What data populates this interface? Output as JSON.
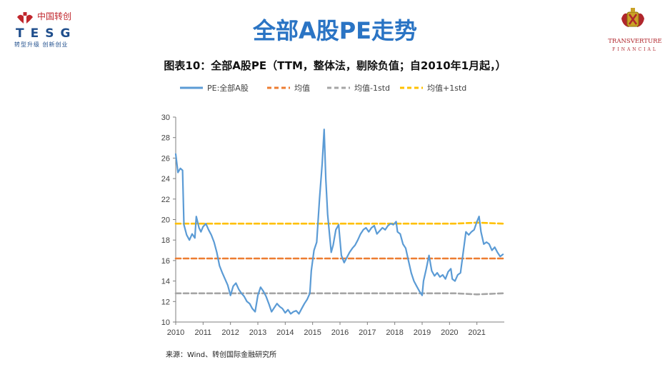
{
  "header": {
    "left_logo": {
      "cn": "中国转创",
      "en": "TESG",
      "slogan": "转型升级 创新创业"
    },
    "right_logo": {
      "name": "TRANSVERTURE",
      "sub": "FINANCIAL"
    },
    "page_title": "全部A股PE走势",
    "figure_title": "图表10：全部A股PE（TTM，整体法，剔除负值；自2010年1月起，）"
  },
  "source": "来源：Wind、转创国际金融研究所",
  "colors": {
    "pe": "#5b9bd5",
    "mean": "#ed7d31",
    "minus": "#a5a5a5",
    "plus": "#ffc000"
  },
  "chart_data": {
    "type": "line",
    "title": "图表10：全部A股PE（TTM，整体法，剔除负值；自2010年1月起，）",
    "xlabel": "",
    "ylabel": "",
    "xlim": [
      2010,
      2022
    ],
    "ylim": [
      10,
      30
    ],
    "x_ticks": [
      "2010",
      "2011",
      "2012",
      "2013",
      "2014",
      "2015",
      "2016",
      "2017",
      "2018",
      "2019",
      "2020",
      "2021"
    ],
    "y_ticks": [
      "10",
      "12",
      "14",
      "16",
      "18",
      "20",
      "22",
      "24",
      "26",
      "28",
      "30"
    ],
    "legend_position": "top",
    "grid": false,
    "series": [
      {
        "name": "PE:全部A股",
        "color": "#5b9bd5",
        "dash": "solid",
        "points": [
          [
            2010.0,
            26.4
          ],
          [
            2010.08,
            24.6
          ],
          [
            2010.17,
            25.0
          ],
          [
            2010.25,
            24.8
          ],
          [
            2010.3,
            19.5
          ],
          [
            2010.4,
            18.5
          ],
          [
            2010.5,
            18.0
          ],
          [
            2010.6,
            18.6
          ],
          [
            2010.7,
            18.2
          ],
          [
            2010.75,
            20.3
          ],
          [
            2010.85,
            19.2
          ],
          [
            2010.92,
            18.8
          ],
          [
            2011.0,
            19.3
          ],
          [
            2011.1,
            19.6
          ],
          [
            2011.2,
            19.0
          ],
          [
            2011.3,
            18.5
          ],
          [
            2011.4,
            17.8
          ],
          [
            2011.5,
            16.8
          ],
          [
            2011.6,
            15.5
          ],
          [
            2011.7,
            14.8
          ],
          [
            2011.8,
            14.2
          ],
          [
            2011.9,
            13.6
          ],
          [
            2012.0,
            12.6
          ],
          [
            2012.1,
            13.5
          ],
          [
            2012.2,
            13.8
          ],
          [
            2012.3,
            13.2
          ],
          [
            2012.4,
            12.8
          ],
          [
            2012.5,
            12.5
          ],
          [
            2012.6,
            12.0
          ],
          [
            2012.7,
            11.8
          ],
          [
            2012.8,
            11.3
          ],
          [
            2012.9,
            11.0
          ],
          [
            2013.0,
            12.6
          ],
          [
            2013.1,
            13.4
          ],
          [
            2013.2,
            13.0
          ],
          [
            2013.3,
            12.5
          ],
          [
            2013.4,
            11.8
          ],
          [
            2013.5,
            11.0
          ],
          [
            2013.6,
            11.4
          ],
          [
            2013.7,
            11.8
          ],
          [
            2013.8,
            11.5
          ],
          [
            2013.9,
            11.3
          ],
          [
            2014.0,
            10.9
          ],
          [
            2014.1,
            11.2
          ],
          [
            2014.2,
            10.8
          ],
          [
            2014.3,
            11.0
          ],
          [
            2014.4,
            11.1
          ],
          [
            2014.5,
            10.8
          ],
          [
            2014.6,
            11.3
          ],
          [
            2014.7,
            11.8
          ],
          [
            2014.8,
            12.2
          ],
          [
            2014.9,
            12.8
          ],
          [
            2014.95,
            15.0
          ],
          [
            2015.05,
            17.0
          ],
          [
            2015.15,
            17.8
          ],
          [
            2015.25,
            22.0
          ],
          [
            2015.35,
            25.5
          ],
          [
            2015.42,
            28.8
          ],
          [
            2015.48,
            24.0
          ],
          [
            2015.55,
            20.5
          ],
          [
            2015.62,
            18.5
          ],
          [
            2015.68,
            16.8
          ],
          [
            2015.75,
            17.5
          ],
          [
            2015.85,
            19.0
          ],
          [
            2015.95,
            19.5
          ],
          [
            2016.05,
            16.5
          ],
          [
            2016.15,
            15.8
          ],
          [
            2016.25,
            16.3
          ],
          [
            2016.35,
            16.8
          ],
          [
            2016.45,
            17.2
          ],
          [
            2016.55,
            17.5
          ],
          [
            2016.65,
            18.0
          ],
          [
            2016.75,
            18.6
          ],
          [
            2016.85,
            19.0
          ],
          [
            2016.95,
            19.2
          ],
          [
            2017.05,
            18.8
          ],
          [
            2017.15,
            19.2
          ],
          [
            2017.25,
            19.4
          ],
          [
            2017.35,
            18.6
          ],
          [
            2017.45,
            18.9
          ],
          [
            2017.55,
            19.2
          ],
          [
            2017.65,
            19.0
          ],
          [
            2017.75,
            19.4
          ],
          [
            2017.85,
            19.6
          ],
          [
            2017.95,
            19.5
          ],
          [
            2018.05,
            19.8
          ],
          [
            2018.1,
            18.8
          ],
          [
            2018.2,
            18.6
          ],
          [
            2018.3,
            17.6
          ],
          [
            2018.4,
            17.2
          ],
          [
            2018.5,
            16.0
          ],
          [
            2018.6,
            14.8
          ],
          [
            2018.7,
            14.0
          ],
          [
            2018.8,
            13.5
          ],
          [
            2018.9,
            13.0
          ],
          [
            2019.0,
            12.6
          ],
          [
            2019.05,
            14.0
          ],
          [
            2019.15,
            15.2
          ],
          [
            2019.25,
            16.5
          ],
          [
            2019.35,
            15.0
          ],
          [
            2019.45,
            14.5
          ],
          [
            2019.55,
            14.8
          ],
          [
            2019.65,
            14.4
          ],
          [
            2019.75,
            14.6
          ],
          [
            2019.85,
            14.2
          ],
          [
            2019.95,
            14.9
          ],
          [
            2020.05,
            15.2
          ],
          [
            2020.1,
            14.2
          ],
          [
            2020.2,
            14.0
          ],
          [
            2020.3,
            14.6
          ],
          [
            2020.4,
            14.8
          ],
          [
            2020.5,
            16.8
          ],
          [
            2020.6,
            18.8
          ],
          [
            2020.7,
            18.5
          ],
          [
            2020.8,
            18.8
          ],
          [
            2020.9,
            19.0
          ],
          [
            2021.0,
            19.8
          ],
          [
            2021.08,
            20.3
          ],
          [
            2021.15,
            18.8
          ],
          [
            2021.25,
            17.6
          ],
          [
            2021.35,
            17.8
          ],
          [
            2021.45,
            17.6
          ],
          [
            2021.55,
            17.0
          ],
          [
            2021.65,
            17.3
          ],
          [
            2021.75,
            16.8
          ],
          [
            2021.85,
            16.4
          ],
          [
            2021.95,
            16.6
          ]
        ]
      },
      {
        "name": "均值",
        "color": "#ed7d31",
        "dash": "dashed",
        "points": [
          [
            2010.0,
            16.2
          ],
          [
            2021.95,
            16.2
          ]
        ]
      },
      {
        "name": "均值-1std",
        "color": "#a5a5a5",
        "dash": "dashed",
        "points": [
          [
            2010.0,
            12.8
          ],
          [
            2020.2,
            12.8
          ],
          [
            2021.0,
            12.7
          ],
          [
            2021.95,
            12.8
          ]
        ]
      },
      {
        "name": "均值+1std",
        "color": "#ffc000",
        "dash": "dashed",
        "points": [
          [
            2010.0,
            19.6
          ],
          [
            2020.2,
            19.6
          ],
          [
            2021.0,
            19.7
          ],
          [
            2021.95,
            19.6
          ]
        ]
      }
    ]
  }
}
